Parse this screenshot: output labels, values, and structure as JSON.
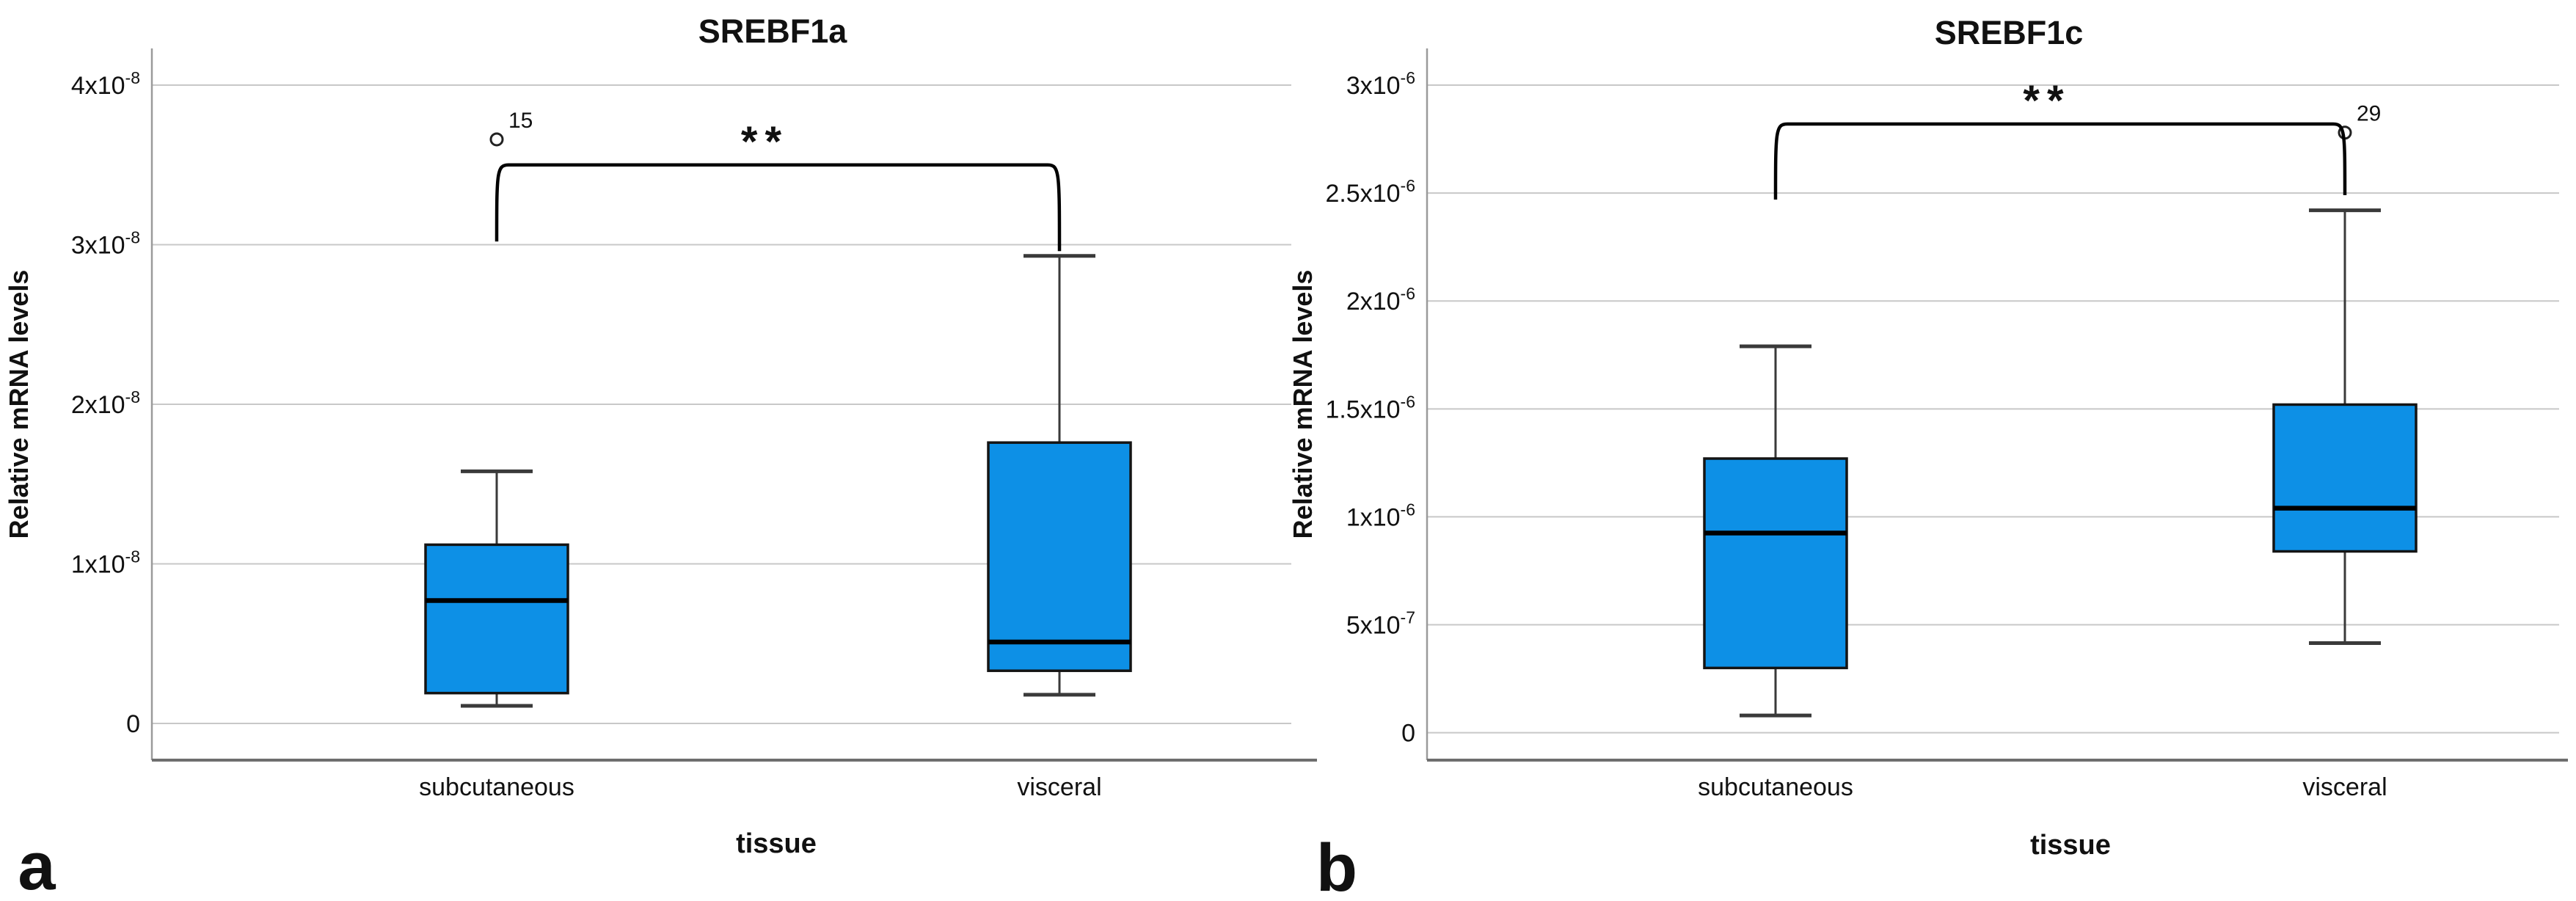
{
  "style": {
    "box_fill": "#0d90e6",
    "box_border": "#141414",
    "median_color": "#000000",
    "whisker_color": "#3a3a3a",
    "grid_color": "#c8c8c8",
    "yaxis_color": "#9a9a9a",
    "xaxis_color": "#6e6e6e",
    "bracket_color": "#000000",
    "text_color": "#111111"
  },
  "chart_data": [
    {
      "type": "box",
      "panel_letter": "a",
      "title": "SREBF1a",
      "ylabel": "Relative mRNA levels",
      "xlabel": "tissue",
      "categories": [
        "subcutaneous",
        "visceral"
      ],
      "grid": true,
      "legend": false,
      "ylim": [
        -2.3e-09,
        4.23e-08
      ],
      "y_ticks": [
        {
          "coef": "0",
          "exp": "",
          "value": 0
        },
        {
          "coef": "1x10",
          "exp": "-8",
          "value": 1e-08
        },
        {
          "coef": "2x10",
          "exp": "-8",
          "value": 2e-08
        },
        {
          "coef": "3x10",
          "exp": "-8",
          "value": 3e-08
        },
        {
          "coef": "4x10",
          "exp": "-8",
          "value": 4e-08
        }
      ],
      "series": [
        {
          "category": "subcutaneous",
          "whisker_low": 1.1e-09,
          "q1": 1.9e-09,
          "median": 7.7e-09,
          "q3": 1.12e-08,
          "whisker_high": 1.58e-08,
          "outliers": [
            {
              "value": 3.66e-08,
              "label": "15"
            }
          ]
        },
        {
          "category": "visceral",
          "whisker_low": 1.8e-09,
          "q1": 3.3e-09,
          "median": 5.1e-09,
          "q3": 1.76e-08,
          "whisker_high": 2.93e-08,
          "outliers": []
        }
      ],
      "significance": {
        "label": "**",
        "bar_value": 3.5e-08,
        "drop_left_to": 3.02e-08,
        "drop_right_to": 2.96e-08
      }
    },
    {
      "type": "box",
      "panel_letter": "b",
      "title": "SREBF1c",
      "ylabel": "Relative mRNA levels",
      "xlabel": "tissue",
      "categories": [
        "subcutaneous",
        "visceral"
      ],
      "grid": true,
      "legend": false,
      "ylim": [
        -1.27e-07,
        3.17e-06
      ],
      "y_ticks": [
        {
          "coef": "0",
          "exp": "",
          "value": 0
        },
        {
          "coef": "5x10",
          "exp": "-7",
          "value": 5e-07
        },
        {
          "coef": "1x10",
          "exp": "-6",
          "value": 1e-06
        },
        {
          "coef": "1.5x10",
          "exp": "-6",
          "value": 1.5e-06
        },
        {
          "coef": "2x10",
          "exp": "-6",
          "value": 2e-06
        },
        {
          "coef": "2.5x10",
          "exp": "-6",
          "value": 2.5e-06
        },
        {
          "coef": "3x10",
          "exp": "-6",
          "value": 3e-06
        }
      ],
      "series": [
        {
          "category": "subcutaneous",
          "whisker_low": 8e-08,
          "q1": 3e-07,
          "median": 9.25e-07,
          "q3": 1.27e-06,
          "whisker_high": 1.79e-06,
          "outliers": []
        },
        {
          "category": "visceral",
          "whisker_low": 4.15e-07,
          "q1": 8.4e-07,
          "median": 1.04e-06,
          "q3": 1.52e-06,
          "whisker_high": 2.42e-06,
          "outliers": [
            {
              "value": 2.78e-06,
              "label": "29"
            }
          ]
        }
      ],
      "significance": {
        "label": "**",
        "bar_value": 2.82e-06,
        "drop_left_to": 2.47e-06,
        "drop_right_to": 2.49e-06
      }
    }
  ]
}
